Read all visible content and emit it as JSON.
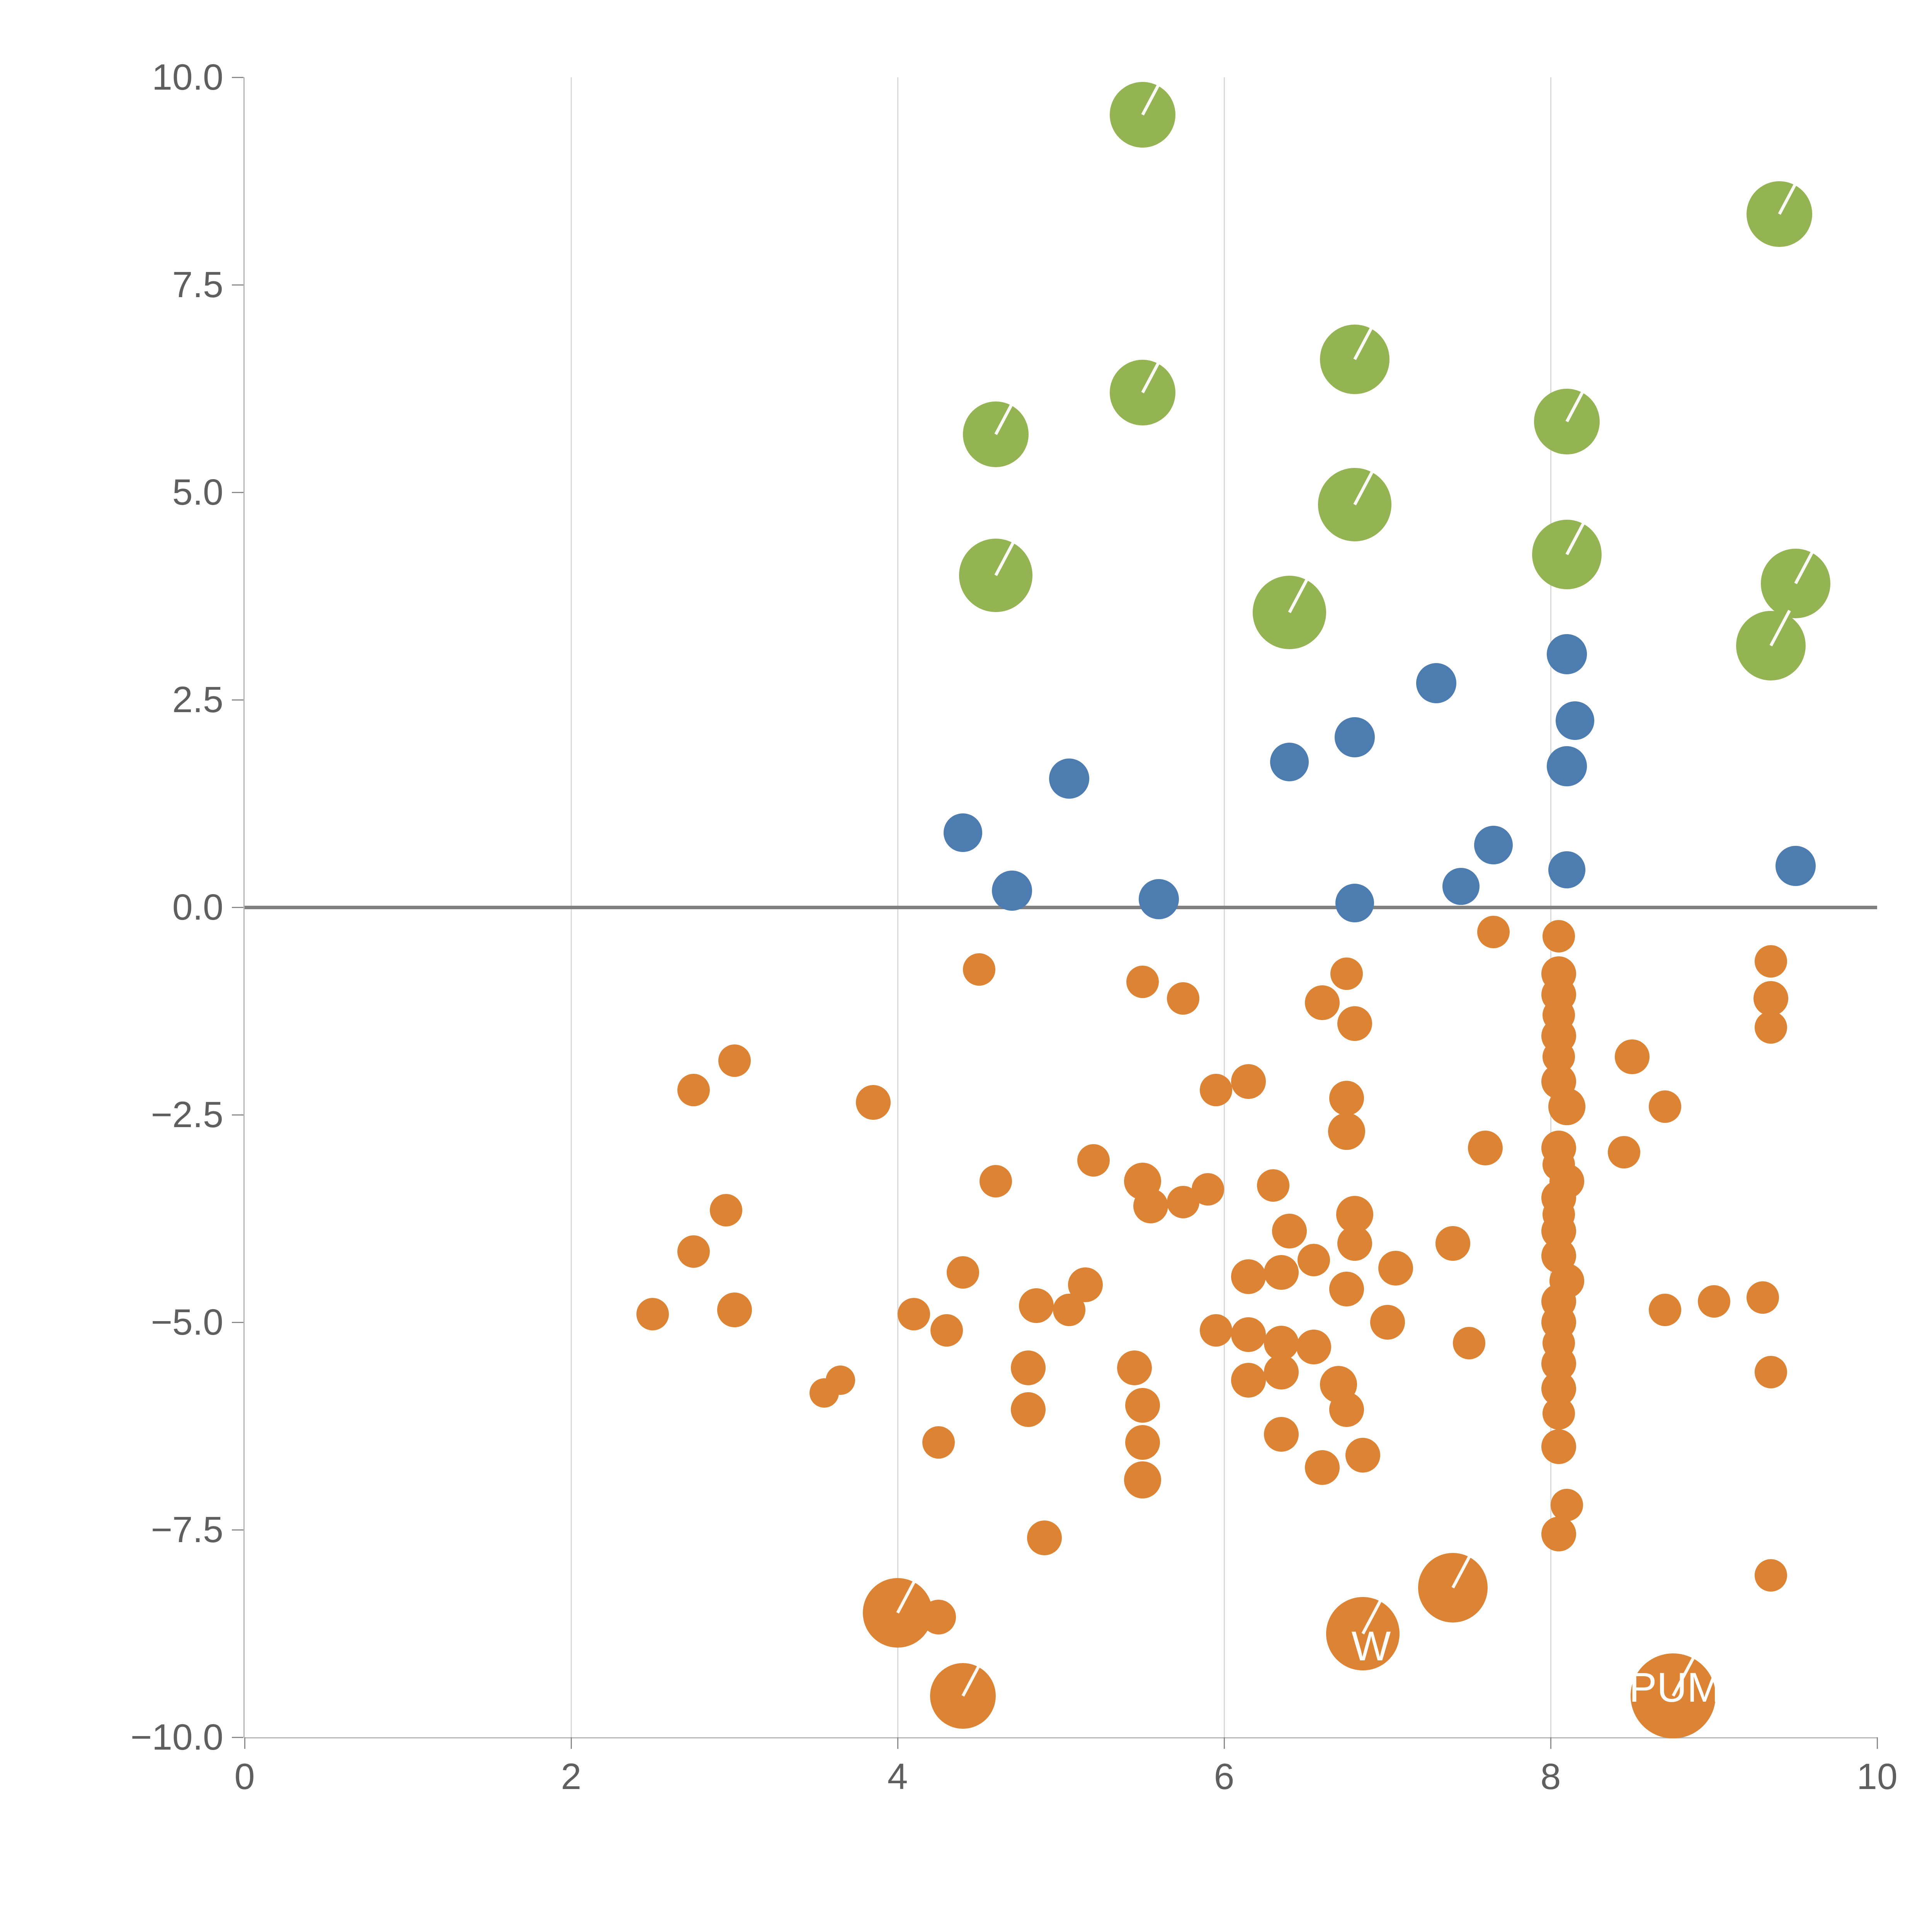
{
  "page": {
    "title": ""
  },
  "chart_data": {
    "type": "scatter",
    "title": "",
    "xlabel": "",
    "ylabel": "",
    "xlim": [
      0,
      10
    ],
    "ylim": [
      -10,
      10
    ],
    "x_ticks": [
      0,
      2,
      4,
      6,
      8,
      10
    ],
    "x_tick_labels": [
      "0",
      "2",
      "4",
      "6",
      "8",
      "10"
    ],
    "y_ticks": [
      10.0,
      7.5,
      5.0,
      2.5,
      0.0,
      -2.5,
      -5.0,
      -7.5,
      -10.0
    ],
    "y_tick_labels": [
      "10.0",
      "7.5",
      "5.0",
      "2.5",
      "0.0",
      "−2.5",
      "−5.0",
      "−7.5",
      "−10.0"
    ],
    "x_gridlines": [
      2,
      4,
      6,
      8
    ],
    "grid": "vertical-only",
    "zero_line": true,
    "legend": "none",
    "point_format": "[x, y, radius_px]",
    "style": {
      "background": "#ffffff",
      "grid_color": "#d9d9d9",
      "axis_color": "#b3b3b3",
      "zero_line_color": "#808080",
      "tick_color": "#8a8a8a",
      "tick_label_color": "#5f5f5f"
    },
    "series": [
      {
        "name": "green",
        "color": "#94b353",
        "marked": true,
        "points": [
          [
            5.5,
            9.55,
            85
          ],
          [
            9.4,
            8.35,
            85
          ],
          [
            6.8,
            6.6,
            90
          ],
          [
            5.5,
            6.2,
            85
          ],
          [
            4.6,
            5.7,
            85
          ],
          [
            8.1,
            5.85,
            85
          ],
          [
            6.8,
            4.85,
            95
          ],
          [
            4.6,
            4.0,
            95
          ],
          [
            8.1,
            4.25,
            90
          ],
          [
            6.4,
            3.55,
            95
          ],
          [
            9.5,
            3.9,
            90
          ],
          [
            9.35,
            3.15,
            90
          ]
        ]
      },
      {
        "name": "blue",
        "color": "#4c7cb0",
        "marked": false,
        "points": [
          [
            7.3,
            2.7,
            52
          ],
          [
            8.1,
            3.05,
            52
          ],
          [
            6.8,
            2.05,
            52
          ],
          [
            8.15,
            2.25,
            50
          ],
          [
            6.4,
            1.75,
            50
          ],
          [
            5.05,
            1.55,
            52
          ],
          [
            8.1,
            1.7,
            52
          ],
          [
            4.4,
            0.9,
            50
          ],
          [
            7.65,
            0.75,
            50
          ],
          [
            4.7,
            0.2,
            52
          ],
          [
            5.6,
            0.1,
            52
          ],
          [
            9.5,
            0.5,
            52
          ],
          [
            8.1,
            0.45,
            48
          ],
          [
            7.45,
            0.25,
            48
          ],
          [
            6.8,
            0.05,
            50
          ]
        ]
      },
      {
        "name": "orange",
        "color": "#dc8334",
        "marked": false,
        "points": [
          [
            4.5,
            -0.75,
            42
          ],
          [
            7.65,
            -0.3,
            42
          ],
          [
            5.5,
            -0.9,
            42
          ],
          [
            5.75,
            -1.1,
            42
          ],
          [
            6.75,
            -0.8,
            42
          ],
          [
            6.6,
            -1.15,
            45
          ],
          [
            6.8,
            -1.4,
            45
          ],
          [
            9.35,
            -0.65,
            42
          ],
          [
            9.35,
            -1.1,
            45
          ],
          [
            9.35,
            -1.45,
            42
          ],
          [
            2.75,
            -2.2,
            42
          ],
          [
            3.0,
            -1.85,
            42
          ],
          [
            3.85,
            -2.35,
            45
          ],
          [
            8.5,
            -1.8,
            45
          ],
          [
            8.7,
            -2.4,
            42
          ],
          [
            5.95,
            -2.2,
            42
          ],
          [
            6.15,
            -2.1,
            45
          ],
          [
            6.75,
            -2.3,
            45
          ],
          [
            6.75,
            -2.7,
            48
          ],
          [
            7.6,
            -2.9,
            45
          ],
          [
            8.45,
            -2.95,
            42
          ],
          [
            4.6,
            -3.3,
            42
          ],
          [
            5.2,
            -3.05,
            42
          ],
          [
            5.5,
            -3.3,
            48
          ],
          [
            5.55,
            -3.6,
            45
          ],
          [
            5.75,
            -3.55,
            42
          ],
          [
            5.9,
            -3.4,
            42
          ],
          [
            6.3,
            -3.35,
            42
          ],
          [
            2.95,
            -3.65,
            42
          ],
          [
            6.4,
            -3.9,
            45
          ],
          [
            6.8,
            -3.7,
            48
          ],
          [
            6.8,
            -4.05,
            45
          ],
          [
            7.4,
            -4.05,
            45
          ],
          [
            2.75,
            -4.15,
            42
          ],
          [
            4.4,
            -4.4,
            42
          ],
          [
            5.15,
            -4.55,
            45
          ],
          [
            6.15,
            -4.45,
            45
          ],
          [
            6.35,
            -4.4,
            45
          ],
          [
            6.55,
            -4.25,
            42
          ],
          [
            7.05,
            -4.35,
            45
          ],
          [
            6.75,
            -4.6,
            45
          ],
          [
            4.85,
            -4.8,
            45
          ],
          [
            5.05,
            -4.85,
            42
          ],
          [
            3.0,
            -4.85,
            45
          ],
          [
            2.5,
            -4.9,
            42
          ],
          [
            4.1,
            -4.9,
            42
          ],
          [
            4.3,
            -5.1,
            42
          ],
          [
            9.0,
            -4.75,
            42
          ],
          [
            8.7,
            -4.85,
            42
          ],
          [
            9.3,
            -4.7,
            42
          ],
          [
            5.95,
            -5.1,
            42
          ],
          [
            6.15,
            -5.15,
            45
          ],
          [
            6.35,
            -5.25,
            45
          ],
          [
            6.55,
            -5.3,
            45
          ],
          [
            7.0,
            -5.0,
            45
          ],
          [
            7.5,
            -5.25,
            42
          ],
          [
            9.35,
            -5.6,
            42
          ],
          [
            4.8,
            -5.55,
            45
          ],
          [
            5.45,
            -5.55,
            45
          ],
          [
            6.15,
            -5.7,
            45
          ],
          [
            6.35,
            -5.6,
            45
          ],
          [
            6.7,
            -5.75,
            48
          ],
          [
            3.55,
            -5.85,
            38
          ],
          [
            3.65,
            -5.7,
            38
          ],
          [
            4.8,
            -6.05,
            45
          ],
          [
            5.5,
            -6.0,
            45
          ],
          [
            6.75,
            -6.05,
            45
          ],
          [
            5.5,
            -6.45,
            45
          ],
          [
            6.35,
            -6.35,
            45
          ],
          [
            4.25,
            -6.45,
            42
          ],
          [
            6.6,
            -6.75,
            45
          ],
          [
            6.85,
            -6.6,
            45
          ],
          [
            5.5,
            -6.9,
            48
          ],
          [
            4.9,
            -7.6,
            45
          ],
          [
            8.1,
            -7.2,
            42
          ],
          [
            8.05,
            -7.55,
            45
          ],
          [
            9.35,
            -8.05,
            42
          ],
          [
            7.4,
            -8.2,
            90
          ],
          [
            4.0,
            -8.5,
            90
          ],
          [
            4.25,
            -8.55,
            45
          ],
          [
            6.85,
            -8.75,
            95
          ],
          [
            4.4,
            -9.5,
            85
          ],
          [
            8.75,
            -9.5,
            110
          ],
          [
            8.05,
            -0.35,
            42
          ],
          [
            8.05,
            -0.8,
            45
          ],
          [
            8.05,
            -1.05,
            45
          ],
          [
            8.05,
            -1.3,
            42
          ],
          [
            8.05,
            -1.55,
            45
          ],
          [
            8.05,
            -1.8,
            42
          ],
          [
            8.05,
            -2.1,
            45
          ],
          [
            8.1,
            -2.4,
            48
          ],
          [
            8.05,
            -2.9,
            45
          ],
          [
            8.05,
            -3.1,
            42
          ],
          [
            8.1,
            -3.3,
            45
          ],
          [
            8.05,
            -3.5,
            45
          ],
          [
            8.05,
            -3.7,
            42
          ],
          [
            8.05,
            -3.9,
            45
          ],
          [
            8.05,
            -4.2,
            45
          ],
          [
            8.1,
            -4.5,
            45
          ],
          [
            8.05,
            -4.75,
            45
          ],
          [
            8.05,
            -5.0,
            45
          ],
          [
            8.05,
            -5.25,
            42
          ],
          [
            8.05,
            -5.5,
            45
          ],
          [
            8.05,
            -5.8,
            45
          ],
          [
            8.05,
            -6.1,
            42
          ],
          [
            8.05,
            -6.5,
            45
          ]
        ]
      }
    ],
    "annotations": [
      {
        "text": "PUM",
        "x": 8.48,
        "y": -9.4,
        "color": "#ffffff"
      },
      {
        "text": "W",
        "x": 6.78,
        "y": -8.9,
        "color": "#ffffff"
      }
    ]
  }
}
